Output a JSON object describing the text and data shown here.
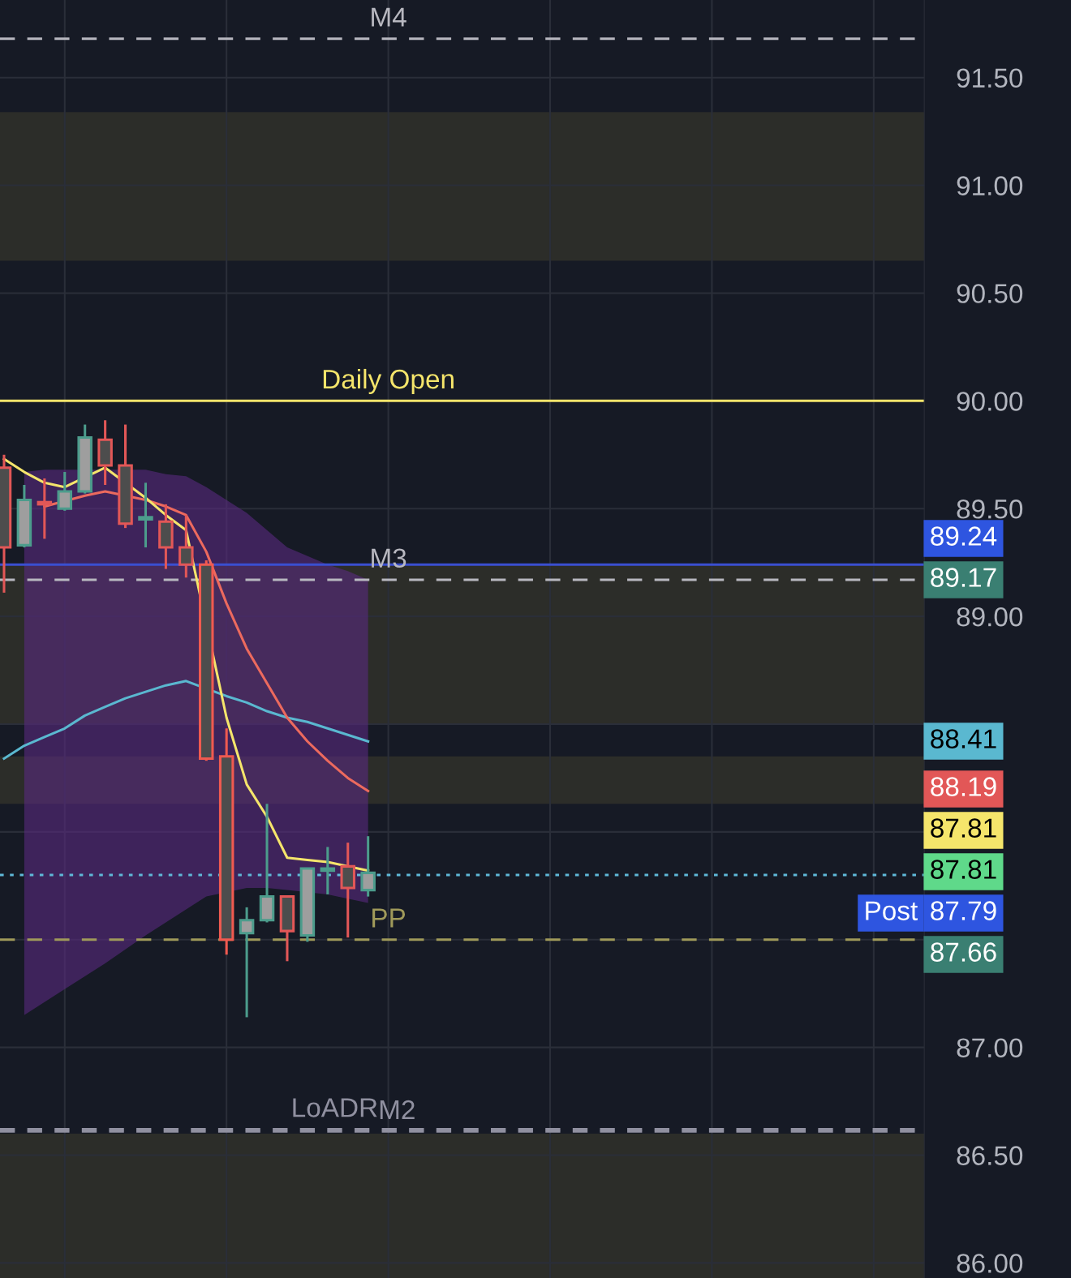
{
  "chart_data": {
    "type": "candlestick",
    "categories": [
      null,
      null,
      null,
      null,
      null,
      null,
      null,
      null,
      null,
      null,
      null,
      null,
      null,
      null,
      null,
      null,
      null,
      null,
      null,
      null,
      null,
      null,
      null,
      null,
      null,
      null,
      null,
      null,
      null,
      null,
      null,
      null,
      null,
      null,
      null,
      null,
      null,
      null,
      null,
      null,
      null,
      null,
      null,
      null,
      null,
      null
    ],
    "ohlc": [
      [
        89.69,
        89.75,
        89.11,
        89.32
      ],
      [
        89.33,
        89.61,
        89.32,
        89.54
      ],
      [
        89.53,
        89.64,
        89.36,
        89.52
      ],
      [
        89.5,
        89.67,
        89.49,
        89.58
      ],
      [
        89.58,
        89.89,
        89.57,
        89.83
      ],
      [
        89.82,
        89.91,
        89.61,
        89.7
      ],
      [
        89.7,
        89.89,
        89.41,
        89.43
      ],
      [
        89.45,
        89.62,
        89.32,
        89.46
      ],
      [
        89.44,
        89.52,
        89.22,
        89.32
      ],
      [
        89.32,
        89.47,
        89.18,
        89.24
      ],
      [
        89.24,
        89.26,
        88.33,
        88.34
      ],
      [
        88.35,
        88.48,
        87.43,
        87.5
      ],
      [
        87.53,
        87.65,
        87.14,
        87.59
      ],
      [
        87.59,
        88.13,
        87.58,
        87.7
      ],
      [
        87.7,
        87.7,
        87.4,
        87.54
      ],
      [
        87.52,
        87.83,
        87.49,
        87.83
      ],
      [
        87.82,
        87.93,
        87.71,
        87.83
      ],
      [
        87.84,
        87.95,
        87.51,
        87.74
      ],
      [
        87.73,
        87.98,
        87.7,
        87.81
      ],
      null,
      null,
      null,
      null,
      null,
      null,
      null,
      null,
      null,
      null,
      null,
      null,
      null,
      null,
      null,
      null,
      null,
      null,
      null,
      null,
      null,
      null,
      null,
      null,
      null,
      null,
      null
    ],
    "colors": [
      "#e25757",
      "#4c9c8c",
      "#e25757",
      "#4c9c8c",
      "#4c9c8c",
      "#e25757",
      "#e25757",
      "#4c9c8c",
      "#e25757",
      "#e25757",
      "#f05a50",
      "#f05a50",
      "#4c9c8c",
      "#4c9c8c",
      "#e25757",
      "#4c9c8c",
      "#4c9c8c",
      "#e25757",
      "#4c9c8c",
      null,
      null,
      null,
      null,
      null,
      null,
      null,
      null,
      null,
      null,
      null,
      null,
      null,
      null,
      null,
      null,
      null,
      null,
      null,
      null,
      null,
      null,
      null,
      null,
      null,
      null,
      null
    ],
    "series": [
      {
        "type": "line",
        "color": "#5ab8d0",
        "values": [
          88.34,
          88.4,
          88.44,
          88.48,
          88.54,
          88.58,
          88.62,
          88.65,
          88.68,
          88.7,
          null,
          88.63,
          88.6,
          88.56,
          88.53,
          88.51,
          88.48,
          88.45,
          88.42,
          null,
          null,
          null,
          null,
          null,
          null,
          null,
          null,
          null,
          null,
          null,
          null,
          null,
          null,
          null,
          null,
          null,
          null,
          null,
          null,
          null,
          null,
          null,
          null,
          null,
          null,
          null
        ],
        "upper": [
          null,
          89.67,
          89.68,
          89.68,
          null,
          89.68,
          null,
          89.68,
          89.66,
          89.65,
          89.6,
          null,
          89.48,
          89.4,
          89.32,
          null,
          89.24,
          89.21,
          89.17,
          null,
          null,
          null,
          null,
          null,
          null,
          null,
          null,
          null,
          null,
          null,
          null,
          null,
          null,
          null,
          null,
          null,
          null,
          null,
          null,
          null,
          null,
          null,
          null,
          null,
          null,
          null
        ],
        "lower": [
          null,
          87.15,
          87.21,
          87.27,
          null,
          87.39,
          null,
          87.52,
          87.58,
          87.64,
          87.7,
          null,
          87.74,
          87.74,
          87.73,
          null,
          87.71,
          87.69,
          87.67,
          null,
          null,
          null,
          null,
          null,
          null,
          null,
          null,
          null,
          null,
          null,
          null,
          null,
          null,
          null,
          null,
          null,
          null,
          null,
          null,
          null,
          null,
          null,
          null,
          null,
          null,
          null
        ]
      },
      {
        "type": "line",
        "color": "#ec6a5e",
        "values": [
          null,
          null,
          89.51,
          null,
          89.56,
          89.58,
          null,
          89.54,
          89.51,
          89.47,
          89.3,
          89.06,
          88.85,
          88.69,
          88.53,
          88.42,
          88.33,
          88.25,
          88.19,
          null,
          null,
          null,
          null,
          null,
          null,
          null,
          null,
          null,
          null,
          null,
          null,
          null,
          null,
          null,
          null,
          null,
          null,
          null,
          null,
          null,
          null,
          null,
          null,
          null,
          null,
          null
        ]
      },
      {
        "type": "line",
        "color": "#f5e56b",
        "values": [
          89.73,
          89.67,
          89.62,
          89.6,
          null,
          89.69,
          null,
          89.55,
          89.47,
          89.4,
          null,
          88.53,
          88.22,
          88.07,
          87.88,
          87.87,
          87.86,
          null,
          87.82,
          null,
          null,
          null,
          null,
          null,
          null,
          null,
          null,
          null,
          null,
          null,
          null,
          null,
          null,
          null,
          null,
          null,
          null,
          null,
          null,
          null,
          null,
          null,
          null,
          null,
          null,
          null
        ]
      }
    ],
    "ylim": [
      85.93,
      91.86
    ],
    "yticks": [
      {
        "value": 86.0,
        "label": "86.00"
      },
      {
        "value": 86.5,
        "label": "86.50"
      },
      {
        "value": 87.0,
        "label": "87.00"
      },
      {
        "value": 87.5,
        "label": null
      },
      {
        "value": 88.0,
        "label": null
      },
      {
        "value": 88.5,
        "label": null
      },
      {
        "value": 89.0,
        "label": "89.00"
      },
      {
        "value": 89.5,
        "label": "89.50"
      },
      {
        "value": 90.0,
        "label": "90.00"
      },
      {
        "value": 90.5,
        "label": "90.50"
      },
      {
        "value": 91.0,
        "label": "91.00"
      },
      {
        "value": 91.5,
        "label": "91.50"
      }
    ],
    "bands": [
      {
        "axis": "y",
        "from": 90.65,
        "to": 91.34,
        "color": "#2c2d29"
      },
      {
        "axis": "y",
        "from": 88.5,
        "to": 89.24,
        "color": "#2c2d29"
      },
      {
        "axis": "y",
        "from": 88.13,
        "to": 88.35,
        "color": "#2c2d29"
      },
      {
        "axis": "y",
        "from": 85.93,
        "to": 86.6,
        "color": "#2c2d29"
      }
    ],
    "ref_lines": [
      {
        "axis": "y",
        "value": 91.68,
        "label": "M4",
        "color": "#b8b8c0",
        "line_style": "dashed"
      },
      {
        "axis": "y",
        "value": 90.0,
        "label": "Daily Open",
        "color": "#f5e56b",
        "line_style": "solid"
      },
      {
        "axis": "y",
        "value": 89.24,
        "color": "#3a4fd0",
        "line_style": "solid"
      },
      {
        "axis": "y",
        "value": 89.17,
        "label": "M3",
        "color": "#b8b8c0",
        "line_style": "dashed"
      },
      {
        "axis": "y",
        "value": 87.8,
        "color": "#5fb8d8",
        "line_style": "dotted"
      },
      {
        "axis": "y",
        "value": 87.5,
        "label": "PP",
        "color": "#a09a5a",
        "line_style": "dashed"
      },
      {
        "axis": "y",
        "value": 86.62,
        "label": "LoADR",
        "color": "#9090a0",
        "line_style": "dashed"
      },
      {
        "axis": "y",
        "value": 86.61,
        "label": "M2",
        "color": "#9090a0",
        "line_style": "dashed"
      }
    ],
    "annotations": [
      "89.24",
      "89.17",
      "88.41",
      "88.19",
      "87.81",
      "87.81",
      "Post",
      "87.79",
      "87.66"
    ],
    "grid": true,
    "tick_labels": "y"
  }
}
